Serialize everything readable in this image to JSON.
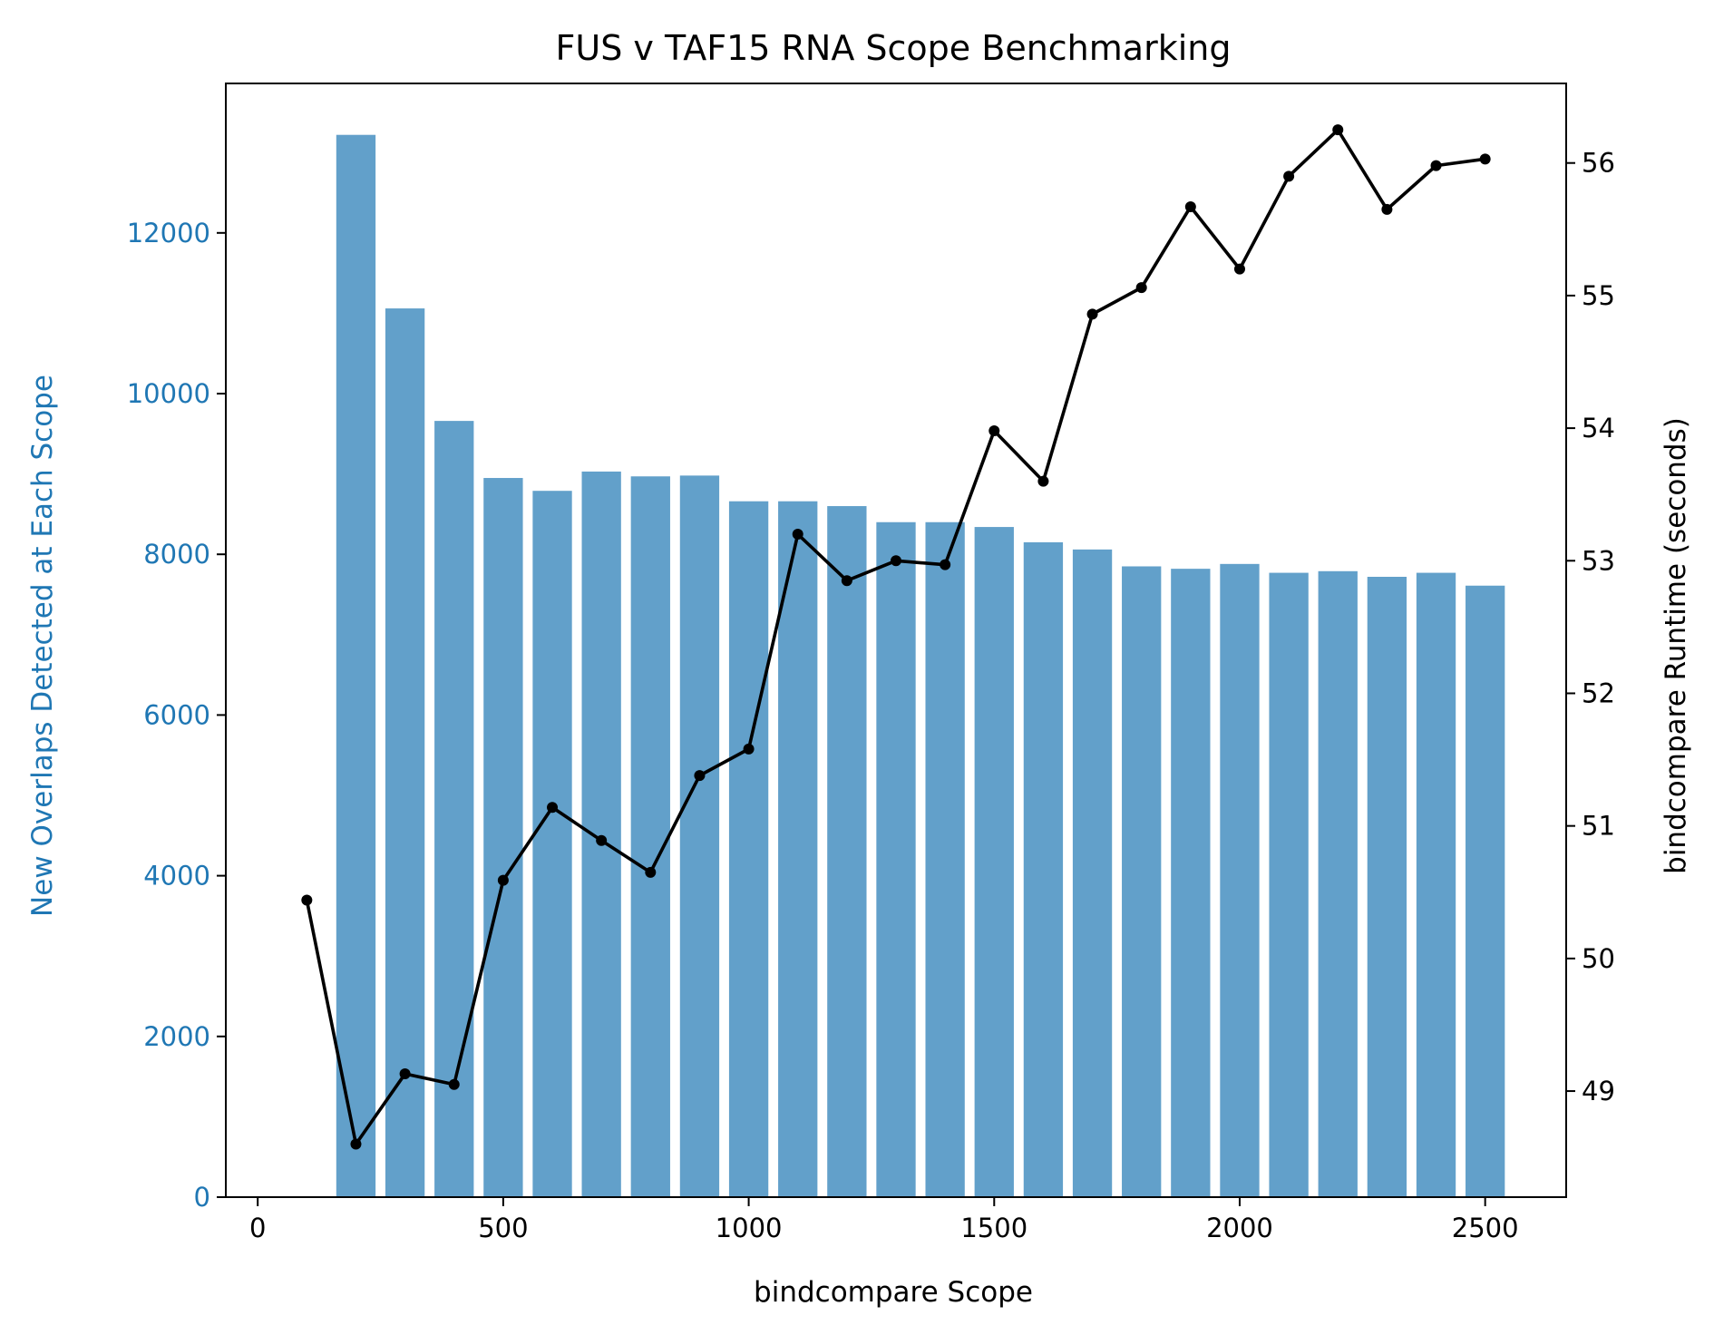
{
  "chart_data": {
    "type": "bar",
    "title": "FUS v TAF15 RNA Scope Benchmarking",
    "xlabel": "bindcompare Scope",
    "ylabel": "New Overlaps Detected at Each Scope",
    "y2label": "bindcompare Runtime (seconds)",
    "xlim": [
      -65,
      2665
    ],
    "ylim": [
      0,
      13860
    ],
    "y2lim": [
      48.2,
      56.6
    ],
    "xticks": [
      0,
      500,
      1000,
      1500,
      2000,
      2500
    ],
    "yticks": [
      0,
      2000,
      4000,
      6000,
      8000,
      10000,
      12000
    ],
    "y2ticks": [
      49,
      50,
      51,
      52,
      53,
      54,
      55,
      56
    ],
    "grid": false,
    "colors": {
      "bars": "#1f77b4",
      "left_axis_text": "#1f77b4",
      "line": "#000000"
    },
    "series": [
      {
        "type": "bar",
        "axis": "left",
        "x": [
          200,
          300,
          400,
          500,
          600,
          700,
          800,
          900,
          1000,
          1100,
          1200,
          1300,
          1400,
          1500,
          1600,
          1700,
          1800,
          1900,
          2000,
          2100,
          2200,
          2300,
          2400,
          2500
        ],
        "values": [
          13220,
          11060,
          9660,
          8950,
          8790,
          9030,
          8970,
          8980,
          8660,
          8660,
          8600,
          8400,
          8400,
          8340,
          8150,
          8060,
          7850,
          7820,
          7880,
          7770,
          7790,
          7720,
          7770,
          7610
        ]
      },
      {
        "type": "line",
        "axis": "right",
        "x": [
          100,
          200,
          300,
          400,
          500,
          600,
          700,
          800,
          900,
          1000,
          1100,
          1200,
          1300,
          1400,
          1500,
          1600,
          1700,
          1800,
          1900,
          2000,
          2100,
          2200,
          2300,
          2400,
          2500
        ],
        "values": [
          50.44,
          48.6,
          49.13,
          49.05,
          50.59,
          51.14,
          50.89,
          50.65,
          51.38,
          51.58,
          53.2,
          52.85,
          53.0,
          52.97,
          53.98,
          53.6,
          54.86,
          55.06,
          55.67,
          55.2,
          55.9,
          56.25,
          55.65,
          55.98,
          56.03
        ]
      }
    ]
  }
}
